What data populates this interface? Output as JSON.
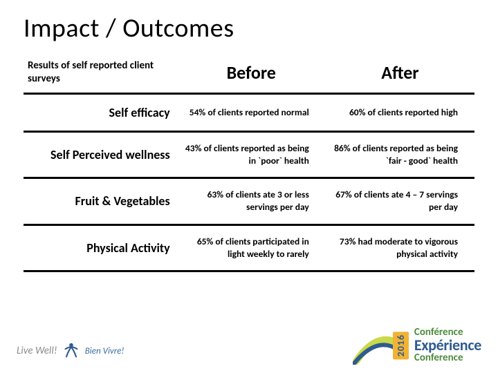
{
  "title": "Impact / Outcomes",
  "table": {
    "header": {
      "row_label": "Results of self reported client surveys",
      "before": "Before",
      "after": "After"
    },
    "sep_colors": [
      "#5a3f8a",
      "#5a3f8a",
      "#2e7a3a",
      "#2e7a3a",
      "#2e7a3a"
    ],
    "rows": [
      {
        "label": "Self efficacy",
        "before": "54% of clients reported normal",
        "after": "60% of clients reported high"
      },
      {
        "label": "Self Perceived wellness",
        "before": "43% of clients reported as being in `poor` health",
        "after": "86% of clients reported as being `fair - good` health"
      },
      {
        "label": "Fruit & Vegetables",
        "before": "63% of clients ate 3 or less servings per day",
        "after": "67% of clients ate 4 – 7 servings per day"
      },
      {
        "label": "Physical Activity",
        "before": "65% of clients participated in light weekly to rarely",
        "after": "73% had moderate to vigorous physical activity"
      }
    ]
  },
  "footer": {
    "left": {
      "line1": "Live Well!",
      "line2": "Bien Vivre!"
    },
    "right": {
      "year": "2016",
      "line1": "Conférence",
      "line2": "Expérience",
      "line3": "Conference"
    }
  },
  "colors": {
    "purple": "#5a3f8a",
    "green": "#2e7a3a",
    "orange": "#f2b233",
    "blue": "#2e5b8f"
  }
}
